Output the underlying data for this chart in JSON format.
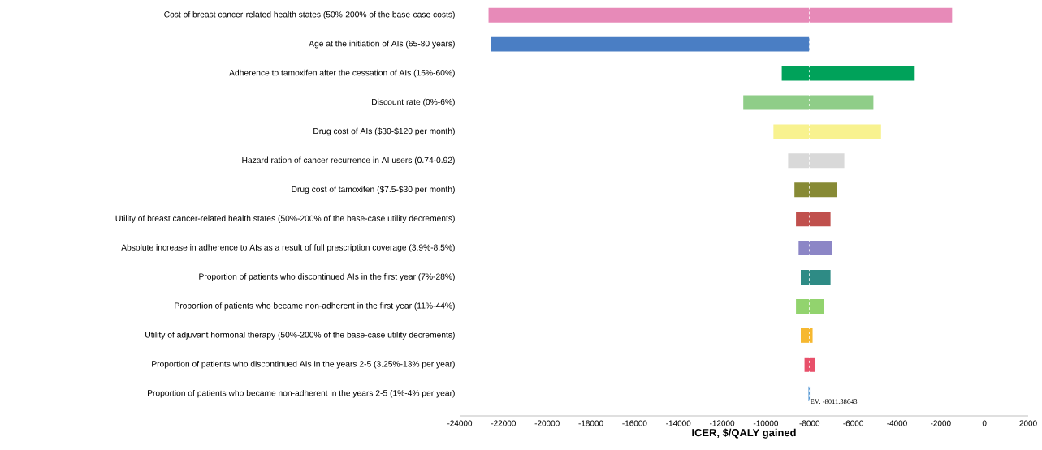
{
  "chart_data": {
    "type": "bar",
    "orientation": "horizontal",
    "xlabel": "ICER, $/QALY gained",
    "categories": [
      "Cost of breast cancer-related health states (50%-200% of the base-case costs)",
      "Age at the initiation of AIs (65-80 years)",
      "Adherence to tamoxifen after the cessation of AIs (15%-60%)",
      "Discount rate (0%-6%)",
      "Drug cost of AIs ($30-$120 per month)",
      "Hazard  ration of cancer recurrence in AI users (0.74-0.92)",
      "Drug cost of tamoxifen ($7.5-$30 per month)",
      "Utility of breast cancer-related health states (50%-200% of the base-case utility decrements)",
      "Absolute increase in adherence to AIs as a result of full prescription coverage (3.9%-8.5%)",
      "Proportion of patients  who discontinued AIs in the first year (7%-28%)",
      "Proportion of patients  who became non-adherent in the first year (11%-44%)",
      "Utility of adjuvant hormonal therapy (50%-200% of the base-case utility decrements)",
      "Proportion of patients  who discontinued AIs in the years 2-5 (3.25%-13% per year)",
      "Proportion of patients  who became non-adherent in the years 2-5 (1%-4% per year)"
    ],
    "base": [
      -22680,
      -22560,
      -9270,
      -11030,
      -9650,
      -8980,
      -8690,
      -8620,
      -8500,
      -8400,
      -8620,
      -8400,
      -8230,
      -8050
    ],
    "values": [
      21200,
      14550,
      6080,
      5950,
      4920,
      2570,
      1960,
      1580,
      1530,
      1360,
      1270,
      540,
      480,
      60
    ],
    "colors": [
      "#e78ab8",
      "#4a7ec4",
      "#00a25a",
      "#8fcd88",
      "#f8f28f",
      "#d9d9d9",
      "#878a35",
      "#c0504d",
      "#8c86c6",
      "#2e8b85",
      "#92d36e",
      "#f6b830",
      "#e8506a",
      "#5b9bd5"
    ],
    "xlim": [
      -24000,
      2000
    ],
    "xticks": [
      -24000,
      -22000,
      -20000,
      -18000,
      -16000,
      -14000,
      -12000,
      -10000,
      -8000,
      -6000,
      -4000,
      -2000,
      0,
      2000
    ],
    "ref_lines": [
      {
        "axis": "x",
        "value": -8011.38643,
        "label": "EV: -8011.38643",
        "color": "#ffffff",
        "line_style": "dashed"
      }
    ]
  }
}
